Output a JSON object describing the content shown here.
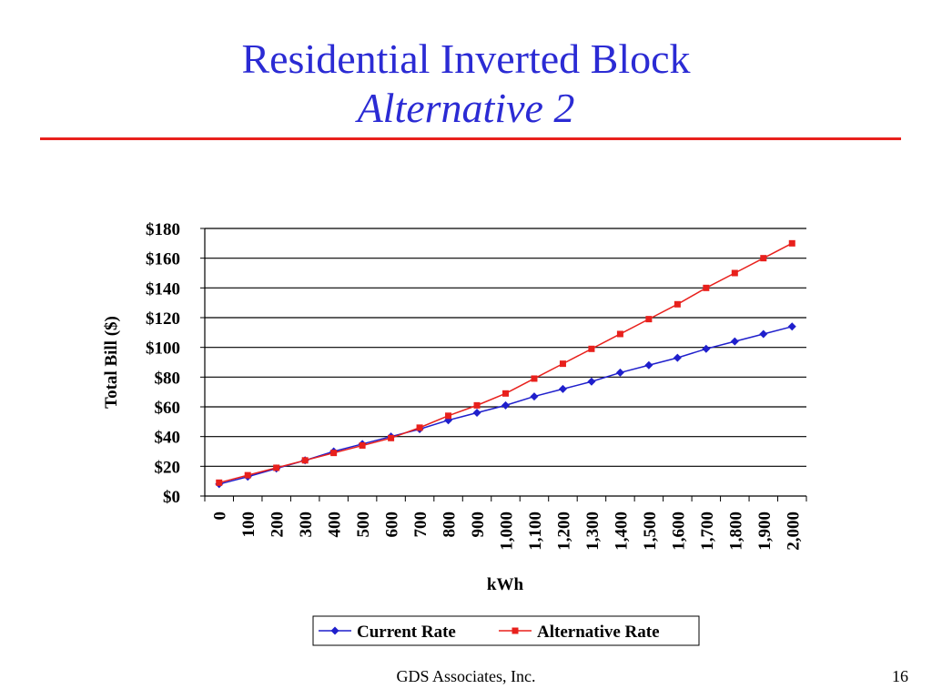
{
  "slide": {
    "title": "Residential Inverted Block",
    "subtitle": "Alternative 2",
    "footer": "GDS Associates, Inc.",
    "page_number": "16",
    "title_color": "#2b2bd4",
    "rule_color": "#e8201c"
  },
  "chart_data": {
    "type": "line",
    "xlabel": "kWh",
    "ylabel": "Total Bill ($)",
    "categories": [
      "0",
      "100",
      "200",
      "300",
      "400",
      "500",
      "600",
      "700",
      "800",
      "900",
      "1,000",
      "1,100",
      "1,200",
      "1,300",
      "1,400",
      "1,500",
      "1,600",
      "1,700",
      "1,800",
      "1,900",
      "2,000"
    ],
    "y_tick_labels": [
      "$0",
      "$20",
      "$40",
      "$60",
      "$80",
      "$100",
      "$120",
      "$140",
      "$160",
      "$180"
    ],
    "ylim": [
      0,
      180
    ],
    "grid": "horizontal",
    "legend": "bottom",
    "series": [
      {
        "name": "Current Rate",
        "color": "#1f1fcc",
        "marker": "diamond",
        "values": [
          8,
          13,
          18.5,
          24,
          30,
          35,
          40,
          45,
          51,
          56,
          61,
          67,
          72,
          77,
          83,
          88,
          93,
          99,
          104,
          109,
          114
        ]
      },
      {
        "name": "Alternative Rate",
        "color": "#e8201c",
        "marker": "square",
        "values": [
          9,
          14,
          19,
          24,
          29,
          34,
          39,
          46,
          54,
          61,
          69,
          79,
          89,
          99,
          109,
          119,
          129,
          140,
          150,
          160,
          170
        ]
      }
    ]
  }
}
